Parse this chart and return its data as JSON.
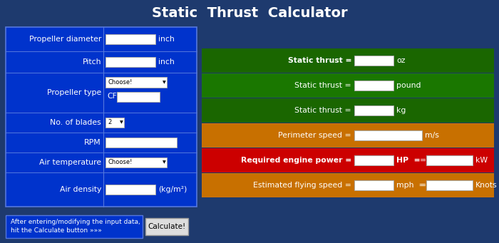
{
  "title": "Static  Thrust  Calculator",
  "bg_color": "#1e3a6e",
  "title_color": "white",
  "left_panel_bg": "#0033cc",
  "left_panel_border": "#5577dd",
  "right_rows": [
    {
      "label": "Static thrust =",
      "unit": "oz",
      "unit2": null,
      "bg": "#1a6600",
      "bold": true,
      "wide_input": false
    },
    {
      "label": "Static thrust =",
      "unit": "pound",
      "unit2": null,
      "bg": "#1a7700",
      "bold": false,
      "wide_input": false
    },
    {
      "label": "Static thrust =",
      "unit": "kg",
      "unit2": null,
      "bg": "#1a6600",
      "bold": false,
      "wide_input": false
    },
    {
      "label": "Perimeter speed =",
      "unit": "m/s",
      "unit2": null,
      "bg": "#c87000",
      "bold": false,
      "wide_input": true
    },
    {
      "label": "Required engine power =",
      "unit": "HP",
      "unit2": "kW",
      "bg": "#cc0000",
      "bold": true,
      "wide_input": false
    },
    {
      "label": "Estimated flying speed =",
      "unit": "mph",
      "unit2": "Knots",
      "bg": "#c87000",
      "bold": false,
      "wide_input": false
    }
  ],
  "bottom_text1": "After entering/modifying the input data,",
  "bottom_text2": "hit the Calculate button »»»",
  "btn_text": "Calculate!"
}
